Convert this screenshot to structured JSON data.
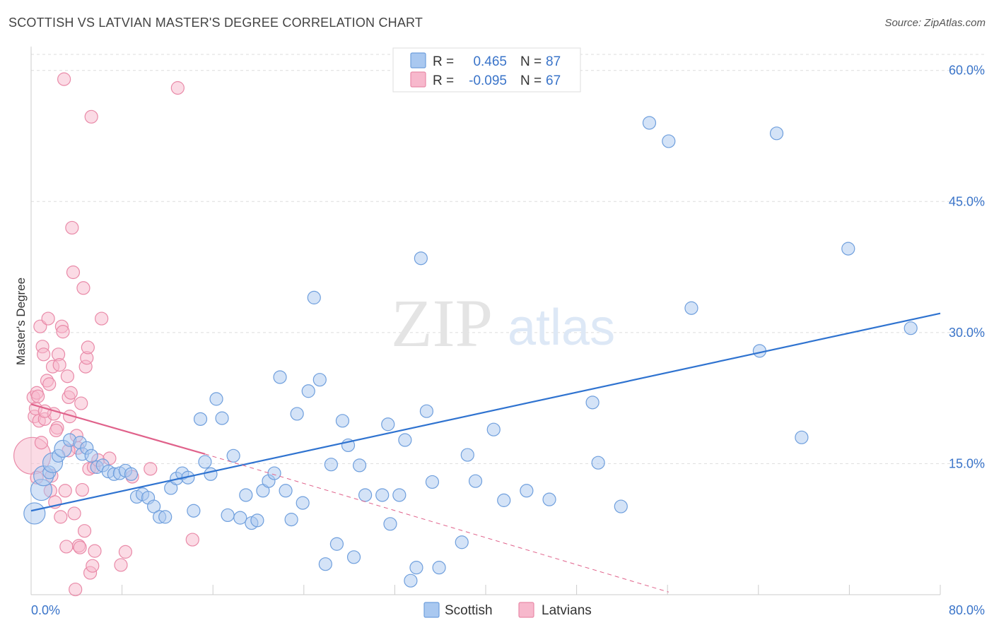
{
  "header": {
    "title": "SCOTTISH VS LATVIAN MASTER'S DEGREE CORRELATION CHART",
    "source": "Source: ZipAtlas.com"
  },
  "watermark": {
    "zip": "ZIP",
    "atlas": "atlas"
  },
  "colors": {
    "blue_fill": "#a9c8f0",
    "blue_stroke": "#6f9fdd",
    "blue_line": "#2f73d0",
    "pink_fill": "#f7b8cc",
    "pink_stroke": "#e98aa8",
    "pink_line": "#e0628b",
    "axis_label": "#3a74c9",
    "grid": "#dddddd"
  },
  "legend": {
    "rows": [
      {
        "r_label": "R =",
        "r_value": "0.465",
        "n_label": "N =",
        "n_value": "87"
      },
      {
        "r_label": "R =",
        "r_value": "-0.095",
        "n_label": "N =",
        "n_value": "67"
      }
    ]
  },
  "bottom_legend": {
    "items": [
      "Scottish",
      "Latvians"
    ]
  },
  "chart_data": {
    "type": "scatter",
    "title": "SCOTTISH VS LATVIAN MASTER'S DEGREE CORRELATION CHART",
    "xlabel": "",
    "ylabel": "Master's Degree",
    "xlim": [
      0,
      80
    ],
    "ylim": [
      0,
      62
    ],
    "x_tick_labels": {
      "min": "0.0%",
      "max": "80.0%"
    },
    "y_ticks": [
      15,
      30,
      45,
      60
    ],
    "y_tick_labels": [
      "15.0%",
      "30.0%",
      "45.0%",
      "60.0%"
    ],
    "grid": true,
    "legend_position": "top-center",
    "series": [
      {
        "name": "Scottish",
        "r": 0.465,
        "n": 87,
        "trend": {
          "x0": 0,
          "y0": 9.6,
          "x1": 80,
          "y1": 32.2
        },
        "points": [
          [
            0.3,
            9.3
          ],
          [
            0.9,
            12.0
          ],
          [
            1.1,
            13.6
          ],
          [
            1.6,
            14.0
          ],
          [
            1.9,
            15.1
          ],
          [
            2.4,
            15.9
          ],
          [
            2.8,
            16.7
          ],
          [
            3.4,
            17.7
          ],
          [
            4.3,
            17.4
          ],
          [
            4.5,
            16.1
          ],
          [
            4.9,
            16.8
          ],
          [
            5.3,
            15.9
          ],
          [
            5.8,
            14.6
          ],
          [
            6.3,
            14.8
          ],
          [
            6.8,
            14.1
          ],
          [
            7.3,
            13.8
          ],
          [
            7.8,
            13.9
          ],
          [
            8.3,
            14.2
          ],
          [
            8.8,
            13.8
          ],
          [
            9.3,
            11.2
          ],
          [
            9.8,
            11.5
          ],
          [
            10.3,
            11.1
          ],
          [
            10.8,
            10.1
          ],
          [
            11.3,
            8.9
          ],
          [
            11.8,
            8.9
          ],
          [
            12.3,
            12.2
          ],
          [
            12.8,
            13.3
          ],
          [
            13.3,
            13.9
          ],
          [
            13.8,
            13.4
          ],
          [
            14.3,
            9.6
          ],
          [
            14.9,
            20.1
          ],
          [
            15.3,
            15.2
          ],
          [
            15.8,
            13.8
          ],
          [
            16.3,
            22.4
          ],
          [
            16.8,
            20.2
          ],
          [
            17.3,
            9.1
          ],
          [
            17.8,
            15.9
          ],
          [
            18.4,
            8.8
          ],
          [
            18.9,
            11.4
          ],
          [
            19.4,
            8.2
          ],
          [
            19.9,
            8.5
          ],
          [
            20.4,
            11.9
          ],
          [
            20.9,
            13.0
          ],
          [
            21.4,
            13.9
          ],
          [
            21.9,
            24.9
          ],
          [
            22.4,
            11.9
          ],
          [
            22.9,
            8.6
          ],
          [
            23.4,
            20.7
          ],
          [
            23.9,
            10.5
          ],
          [
            24.4,
            23.3
          ],
          [
            24.9,
            34.0
          ],
          [
            25.4,
            24.6
          ],
          [
            25.9,
            3.5
          ],
          [
            26.4,
            14.9
          ],
          [
            26.9,
            5.8
          ],
          [
            27.4,
            19.9
          ],
          [
            27.9,
            17.1
          ],
          [
            28.4,
            4.3
          ],
          [
            28.9,
            14.8
          ],
          [
            29.4,
            11.4
          ],
          [
            30.9,
            11.4
          ],
          [
            31.4,
            19.5
          ],
          [
            31.6,
            8.1
          ],
          [
            32.4,
            11.4
          ],
          [
            32.9,
            17.7
          ],
          [
            33.4,
            1.6
          ],
          [
            33.9,
            3.1
          ],
          [
            34.3,
            38.5
          ],
          [
            34.8,
            21.0
          ],
          [
            35.3,
            12.9
          ],
          [
            35.9,
            3.1
          ],
          [
            37.9,
            6.0
          ],
          [
            38.4,
            16.0
          ],
          [
            39.1,
            13.0
          ],
          [
            40.7,
            18.9
          ],
          [
            41.6,
            10.8
          ],
          [
            43.6,
            11.9
          ],
          [
            45.6,
            10.9
          ],
          [
            49.4,
            22.0
          ],
          [
            49.9,
            15.1
          ],
          [
            51.9,
            10.1
          ],
          [
            54.4,
            54.0
          ],
          [
            56.1,
            51.9
          ],
          [
            58.1,
            32.8
          ],
          [
            64.1,
            27.9
          ],
          [
            65.6,
            52.8
          ],
          [
            67.8,
            18.0
          ],
          [
            71.9,
            39.6
          ],
          [
            77.4,
            30.5
          ]
        ]
      },
      {
        "name": "Latvians",
        "r": -0.095,
        "n": 67,
        "trend": {
          "x0": 0,
          "y0": 21.8,
          "x1": 15.3,
          "y1": 16.1
        },
        "trend_dashed": {
          "x0": 15.3,
          "y0": 16.1,
          "x1": 56.1,
          "y1": 0.3
        },
        "points": [
          [
            0.1,
            15.9
          ],
          [
            0.2,
            22.6
          ],
          [
            0.3,
            20.4
          ],
          [
            0.4,
            21.3
          ],
          [
            0.5,
            23.1
          ],
          [
            0.6,
            22.7
          ],
          [
            0.7,
            19.9
          ],
          [
            0.8,
            30.7
          ],
          [
            0.9,
            17.4
          ],
          [
            1.0,
            28.4
          ],
          [
            1.1,
            27.5
          ],
          [
            1.2,
            20.1
          ],
          [
            1.4,
            24.5
          ],
          [
            1.5,
            31.6
          ],
          [
            1.6,
            24.1
          ],
          [
            1.7,
            11.9
          ],
          [
            1.8,
            13.6
          ],
          [
            1.9,
            26.1
          ],
          [
            2.0,
            20.7
          ],
          [
            2.1,
            10.6
          ],
          [
            2.3,
            19.1
          ],
          [
            2.4,
            27.5
          ],
          [
            2.5,
            26.3
          ],
          [
            2.6,
            8.9
          ],
          [
            2.7,
            30.7
          ],
          [
            2.8,
            30.1
          ],
          [
            2.9,
            59.0
          ],
          [
            3.0,
            11.9
          ],
          [
            3.1,
            5.5
          ],
          [
            3.2,
            25.0
          ],
          [
            3.3,
            22.6
          ],
          [
            3.4,
            20.4
          ],
          [
            3.5,
            23.1
          ],
          [
            3.6,
            42.0
          ],
          [
            3.7,
            36.9
          ],
          [
            3.8,
            9.3
          ],
          [
            3.9,
            0.6
          ],
          [
            4.0,
            18.2
          ],
          [
            4.1,
            16.8
          ],
          [
            4.2,
            5.6
          ],
          [
            4.3,
            5.4
          ],
          [
            4.4,
            21.9
          ],
          [
            4.5,
            12.0
          ],
          [
            4.6,
            35.1
          ],
          [
            4.7,
            7.3
          ],
          [
            4.8,
            26.1
          ],
          [
            4.9,
            27.1
          ],
          [
            5.0,
            28.3
          ],
          [
            5.1,
            14.4
          ],
          [
            5.2,
            2.5
          ],
          [
            5.3,
            54.7
          ],
          [
            5.4,
            3.3
          ],
          [
            5.5,
            14.6
          ],
          [
            5.6,
            5.0
          ],
          [
            5.9,
            15.4
          ],
          [
            6.2,
            31.6
          ],
          [
            6.9,
            15.6
          ],
          [
            7.9,
            3.4
          ],
          [
            8.3,
            4.9
          ],
          [
            8.9,
            13.5
          ],
          [
            10.5,
            14.4
          ],
          [
            14.2,
            6.3
          ],
          [
            12.9,
            58.0
          ],
          [
            1.2,
            21.0
          ],
          [
            2.2,
            18.8
          ],
          [
            0.5,
            13.4
          ],
          [
            3.3,
            16.5
          ]
        ]
      }
    ]
  }
}
